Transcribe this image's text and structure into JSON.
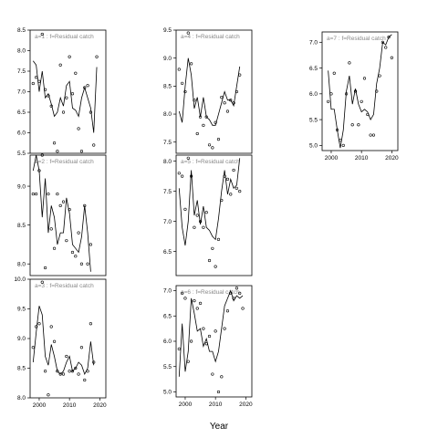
{
  "figure": {
    "xlabel": "Year",
    "line_color": "#000000",
    "title_color": "#888888"
  },
  "chart_data": [
    {
      "type": "line",
      "title": "a=1 : f=Residual catch",
      "xlim": [
        1997,
        2022
      ],
      "ylim": [
        5.5,
        8.5
      ],
      "yticks": [
        5.5,
        6.0,
        6.5,
        7.0,
        7.5,
        8.0,
        8.5
      ],
      "xticks": [
        2000,
        2010,
        2020
      ],
      "show_xticks": false,
      "observed": [
        [
          1998,
          7.2
        ],
        [
          1999,
          7.35
        ],
        [
          2000,
          7.25
        ],
        [
          2001,
          8.4
        ],
        [
          2002,
          7.05
        ],
        [
          2003,
          6.9
        ],
        [
          2004,
          6.65
        ],
        [
          2005,
          5.75
        ],
        [
          2006,
          5.55
        ],
        [
          2007,
          7.65
        ],
        [
          2008,
          6.5
        ],
        [
          2009,
          6.85
        ],
        [
          2010,
          7.85
        ],
        [
          2011,
          6.95
        ],
        [
          2012,
          7.45
        ],
        [
          2013,
          6.1
        ],
        [
          2014,
          5.55
        ],
        [
          2015,
          7.1
        ],
        [
          2016,
          7.15
        ],
        [
          2017,
          6.5
        ],
        [
          2018,
          5.7
        ],
        [
          2019,
          7.85
        ]
      ],
      "fitted": [
        [
          1998,
          7.75
        ],
        [
          1999,
          7.65
        ],
        [
          2000,
          7.0
        ],
        [
          2001,
          7.5
        ],
        [
          2002,
          6.85
        ],
        [
          2003,
          6.95
        ],
        [
          2004,
          6.7
        ],
        [
          2005,
          6.4
        ],
        [
          2006,
          6.5
        ],
        [
          2007,
          6.85
        ],
        [
          2008,
          6.65
        ],
        [
          2009,
          7.15
        ],
        [
          2010,
          7.25
        ],
        [
          2011,
          6.6
        ],
        [
          2012,
          6.55
        ],
        [
          2013,
          6.4
        ],
        [
          2014,
          6.85
        ],
        [
          2015,
          7.1
        ],
        [
          2016,
          6.85
        ],
        [
          2017,
          6.6
        ],
        [
          2018,
          6.0
        ],
        [
          2019,
          7.6
        ]
      ]
    },
    {
      "type": "line",
      "title": "a=4 : f=Residual catch",
      "xlim": [
        1997,
        2022
      ],
      "ylim": [
        7.3,
        9.5
      ],
      "yticks": [
        7.5,
        8.0,
        8.5,
        9.0,
        9.5
      ],
      "xticks": [
        2000,
        2010,
        2020
      ],
      "show_xticks": false,
      "observed": [
        [
          1998,
          8.8
        ],
        [
          1999,
          8.55
        ],
        [
          2000,
          8.4
        ],
        [
          2001,
          9.45
        ],
        [
          2002,
          8.9
        ],
        [
          2003,
          8.25
        ],
        [
          2004,
          7.65
        ],
        [
          2005,
          7.95
        ],
        [
          2006,
          7.8
        ],
        [
          2007,
          7.95
        ],
        [
          2008,
          7.45
        ],
        [
          2009,
          7.4
        ],
        [
          2010,
          7.85
        ],
        [
          2011,
          7.55
        ],
        [
          2012,
          8.3
        ],
        [
          2013,
          8.2
        ],
        [
          2014,
          8.05
        ],
        [
          2015,
          8.25
        ],
        [
          2016,
          8.2
        ],
        [
          2017,
          8.4
        ],
        [
          2018,
          8.7
        ]
      ],
      "fitted": [
        [
          1998,
          8.05
        ],
        [
          1999,
          7.85
        ],
        [
          2000,
          8.5
        ],
        [
          2001,
          9.0
        ],
        [
          2002,
          8.7
        ],
        [
          2003,
          8.1
        ],
        [
          2004,
          8.3
        ],
        [
          2005,
          7.95
        ],
        [
          2006,
          8.3
        ],
        [
          2007,
          7.95
        ],
        [
          2008,
          7.9
        ],
        [
          2009,
          7.8
        ],
        [
          2010,
          7.8
        ],
        [
          2011,
          8.0
        ],
        [
          2012,
          8.2
        ],
        [
          2013,
          8.4
        ],
        [
          2014,
          8.25
        ],
        [
          2015,
          8.25
        ],
        [
          2016,
          8.15
        ],
        [
          2017,
          8.5
        ],
        [
          2018,
          8.85
        ]
      ]
    },
    {
      "type": "line",
      "title": "a=7 : f=Residual catch",
      "xlim": [
        1997,
        2022
      ],
      "ylim": [
        4.9,
        7.2
      ],
      "yticks": [
        5.0,
        5.5,
        6.0,
        6.5,
        7.0
      ],
      "xticks": [
        2000,
        2010,
        2020
      ],
      "show_xticks": true,
      "observed": [
        [
          1999,
          5.85
        ],
        [
          2000,
          6.0
        ],
        [
          2001,
          6.4
        ],
        [
          2002,
          5.3
        ],
        [
          2003,
          5.1
        ],
        [
          2004,
          5.0
        ],
        [
          2005,
          6.0
        ],
        [
          2006,
          6.6
        ],
        [
          2007,
          5.4
        ],
        [
          2008,
          6.05
        ],
        [
          2009,
          5.4
        ],
        [
          2010,
          5.85
        ],
        [
          2011,
          6.3
        ],
        [
          2012,
          5.6
        ],
        [
          2013,
          5.2
        ],
        [
          2014,
          5.2
        ],
        [
          2015,
          6.05
        ],
        [
          2016,
          6.35
        ],
        [
          2017,
          7.0
        ],
        [
          2018,
          6.9
        ],
        [
          2019,
          7.1
        ],
        [
          2020,
          6.7
        ]
      ],
      "fitted": [
        [
          1999,
          6.45
        ],
        [
          2000,
          5.7
        ],
        [
          2001,
          5.7
        ],
        [
          2002,
          5.3
        ],
        [
          2003,
          4.95
        ],
        [
          2004,
          5.3
        ],
        [
          2005,
          6.05
        ],
        [
          2006,
          6.35
        ],
        [
          2007,
          5.8
        ],
        [
          2008,
          6.1
        ],
        [
          2009,
          5.8
        ],
        [
          2010,
          5.65
        ],
        [
          2011,
          5.7
        ],
        [
          2012,
          5.65
        ],
        [
          2013,
          5.5
        ],
        [
          2014,
          5.6
        ],
        [
          2015,
          6.2
        ],
        [
          2016,
          6.5
        ],
        [
          2017,
          7.0
        ],
        [
          2018,
          6.95
        ],
        [
          2019,
          7.1
        ],
        [
          2020,
          7.15
        ]
      ]
    },
    {
      "type": "line",
      "title": "a=2 : f=Residual catch",
      "xlim": [
        1997,
        2022
      ],
      "ylim": [
        7.85,
        9.4
      ],
      "yticks": [
        8.0,
        8.5,
        9.0
      ],
      "xticks": [
        2000,
        2010,
        2020
      ],
      "show_xticks": false,
      "observed": [
        [
          1998,
          8.9
        ],
        [
          1999,
          8.9
        ],
        [
          2000,
          9.2
        ],
        [
          2001,
          9.4
        ],
        [
          2002,
          7.95
        ],
        [
          2003,
          8.9
        ],
        [
          2004,
          8.45
        ],
        [
          2005,
          8.2
        ],
        [
          2006,
          8.9
        ],
        [
          2007,
          8.75
        ],
        [
          2008,
          8.8
        ],
        [
          2009,
          8.3
        ],
        [
          2010,
          8.7
        ],
        [
          2011,
          8.15
        ],
        [
          2012,
          8.1
        ],
        [
          2013,
          8.4
        ],
        [
          2014,
          8.0
        ],
        [
          2015,
          8.75
        ],
        [
          2016,
          8.0
        ],
        [
          2017,
          8.25
        ]
      ],
      "fitted": [
        [
          1998,
          9.2
        ],
        [
          1999,
          9.4
        ],
        [
          2000,
          9.2
        ],
        [
          2001,
          8.6
        ],
        [
          2002,
          9.1
        ],
        [
          2003,
          8.4
        ],
        [
          2004,
          8.75
        ],
        [
          2005,
          8.6
        ],
        [
          2006,
          8.25
        ],
        [
          2007,
          8.4
        ],
        [
          2008,
          8.4
        ],
        [
          2009,
          8.85
        ],
        [
          2010,
          8.65
        ],
        [
          2011,
          8.25
        ],
        [
          2012,
          8.2
        ],
        [
          2013,
          8.15
        ],
        [
          2014,
          8.35
        ],
        [
          2015,
          8.75
        ],
        [
          2016,
          8.4
        ],
        [
          2017,
          7.9
        ]
      ]
    },
    {
      "type": "line",
      "title": "a=5 : f=Residual catch",
      "xlim": [
        1997,
        2022
      ],
      "ylim": [
        6.1,
        8.1
      ],
      "yticks": [
        6.5,
        7.0,
        7.5,
        8.0
      ],
      "xticks": [
        2000,
        2010,
        2020
      ],
      "show_xticks": false,
      "observed": [
        [
          1998,
          7.8
        ],
        [
          1999,
          7.75
        ],
        [
          2000,
          7.2
        ],
        [
          2001,
          8.05
        ],
        [
          2002,
          7.75
        ],
        [
          2003,
          6.9
        ],
        [
          2004,
          7.1
        ],
        [
          2005,
          7.0
        ],
        [
          2006,
          6.9
        ],
        [
          2007,
          7.15
        ],
        [
          2008,
          6.35
        ],
        [
          2009,
          6.55
        ],
        [
          2010,
          6.25
        ],
        [
          2011,
          6.7
        ],
        [
          2012,
          7.35
        ],
        [
          2013,
          7.75
        ],
        [
          2014,
          7.7
        ],
        [
          2015,
          7.45
        ],
        [
          2016,
          7.85
        ],
        [
          2017,
          7.55
        ],
        [
          2018,
          7.5
        ]
      ],
      "fitted": [
        [
          1998,
          7.55
        ],
        [
          1999,
          6.9
        ],
        [
          2000,
          6.6
        ],
        [
          2001,
          7.0
        ],
        [
          2002,
          7.85
        ],
        [
          2003,
          7.1
        ],
        [
          2004,
          7.35
        ],
        [
          2005,
          6.95
        ],
        [
          2006,
          7.25
        ],
        [
          2007,
          6.9
        ],
        [
          2008,
          6.85
        ],
        [
          2009,
          6.75
        ],
        [
          2010,
          6.7
        ],
        [
          2011,
          7.05
        ],
        [
          2012,
          7.5
        ],
        [
          2013,
          7.85
        ],
        [
          2014,
          7.45
        ],
        [
          2015,
          7.7
        ],
        [
          2016,
          7.55
        ],
        [
          2017,
          7.6
        ],
        [
          2018,
          8.05
        ]
      ]
    },
    {
      "type": "line",
      "title": "a=3 : f=Residual catch",
      "xlim": [
        1997,
        2022
      ],
      "ylim": [
        8.0,
        10.0
      ],
      "yticks": [
        8.0,
        8.5,
        9.0,
        9.5,
        10.0
      ],
      "xticks": [
        2000,
        2010,
        2020
      ],
      "show_xticks": true,
      "observed": [
        [
          1998,
          8.85
        ],
        [
          1999,
          9.2
        ],
        [
          2000,
          9.25
        ],
        [
          2001,
          9.95
        ],
        [
          2002,
          8.45
        ],
        [
          2003,
          8.05
        ],
        [
          2004,
          9.2
        ],
        [
          2005,
          8.95
        ],
        [
          2006,
          8.45
        ],
        [
          2007,
          8.4
        ],
        [
          2008,
          8.4
        ],
        [
          2009,
          8.7
        ],
        [
          2010,
          8.45
        ],
        [
          2011,
          8.45
        ],
        [
          2012,
          8.5
        ],
        [
          2013,
          8.4
        ],
        [
          2014,
          8.85
        ],
        [
          2015,
          8.3
        ],
        [
          2016,
          8.45
        ],
        [
          2017,
          9.25
        ],
        [
          2018,
          8.6
        ]
      ],
      "fitted": [
        [
          1998,
          8.6
        ],
        [
          1999,
          9.1
        ],
        [
          2000,
          9.55
        ],
        [
          2001,
          9.4
        ],
        [
          2002,
          8.7
        ],
        [
          2003,
          8.55
        ],
        [
          2004,
          8.9
        ],
        [
          2005,
          8.7
        ],
        [
          2006,
          8.45
        ],
        [
          2007,
          8.4
        ],
        [
          2008,
          8.45
        ],
        [
          2009,
          8.6
        ],
        [
          2010,
          8.7
        ],
        [
          2011,
          8.45
        ],
        [
          2012,
          8.5
        ],
        [
          2013,
          8.6
        ],
        [
          2014,
          8.55
        ],
        [
          2015,
          8.4
        ],
        [
          2016,
          8.5
        ],
        [
          2017,
          8.95
        ],
        [
          2018,
          8.55
        ]
      ]
    },
    {
      "type": "line",
      "title": "a=6 : f=Residual catch",
      "xlim": [
        1997,
        2022
      ],
      "ylim": [
        4.9,
        7.1
      ],
      "yticks": [
        5.0,
        5.5,
        6.0,
        6.5,
        7.0
      ],
      "xticks": [
        2000,
        2010,
        2020
      ],
      "show_xticks": true,
      "observed": [
        [
          1998,
          5.85
        ],
        [
          1999,
          6.95
        ],
        [
          2000,
          6.85
        ],
        [
          2001,
          5.6
        ],
        [
          2002,
          6.0
        ],
        [
          2003,
          6.8
        ],
        [
          2004,
          6.65
        ],
        [
          2005,
          6.75
        ],
        [
          2006,
          6.25
        ],
        [
          2007,
          5.95
        ],
        [
          2008,
          6.1
        ],
        [
          2009,
          5.35
        ],
        [
          2010,
          6.2
        ],
        [
          2011,
          5.0
        ],
        [
          2012,
          5.3
        ],
        [
          2013,
          6.25
        ],
        [
          2014,
          6.6
        ],
        [
          2015,
          6.95
        ],
        [
          2016,
          6.85
        ],
        [
          2017,
          7.05
        ],
        [
          2018,
          6.95
        ],
        [
          2019,
          6.65
        ]
      ],
      "fitted": [
        [
          1998,
          5.3
        ],
        [
          1999,
          6.35
        ],
        [
          2000,
          5.4
        ],
        [
          2001,
          5.8
        ],
        [
          2002,
          6.85
        ],
        [
          2003,
          6.55
        ],
        [
          2004,
          6.2
        ],
        [
          2005,
          6.25
        ],
        [
          2006,
          5.9
        ],
        [
          2007,
          6.05
        ],
        [
          2008,
          5.8
        ],
        [
          2009,
          5.8
        ],
        [
          2010,
          5.6
        ],
        [
          2011,
          5.8
        ],
        [
          2012,
          6.25
        ],
        [
          2013,
          6.7
        ],
        [
          2014,
          6.85
        ],
        [
          2015,
          7.0
        ],
        [
          2016,
          6.8
        ],
        [
          2017,
          6.9
        ],
        [
          2018,
          6.85
        ],
        [
          2019,
          6.9
        ]
      ]
    }
  ]
}
